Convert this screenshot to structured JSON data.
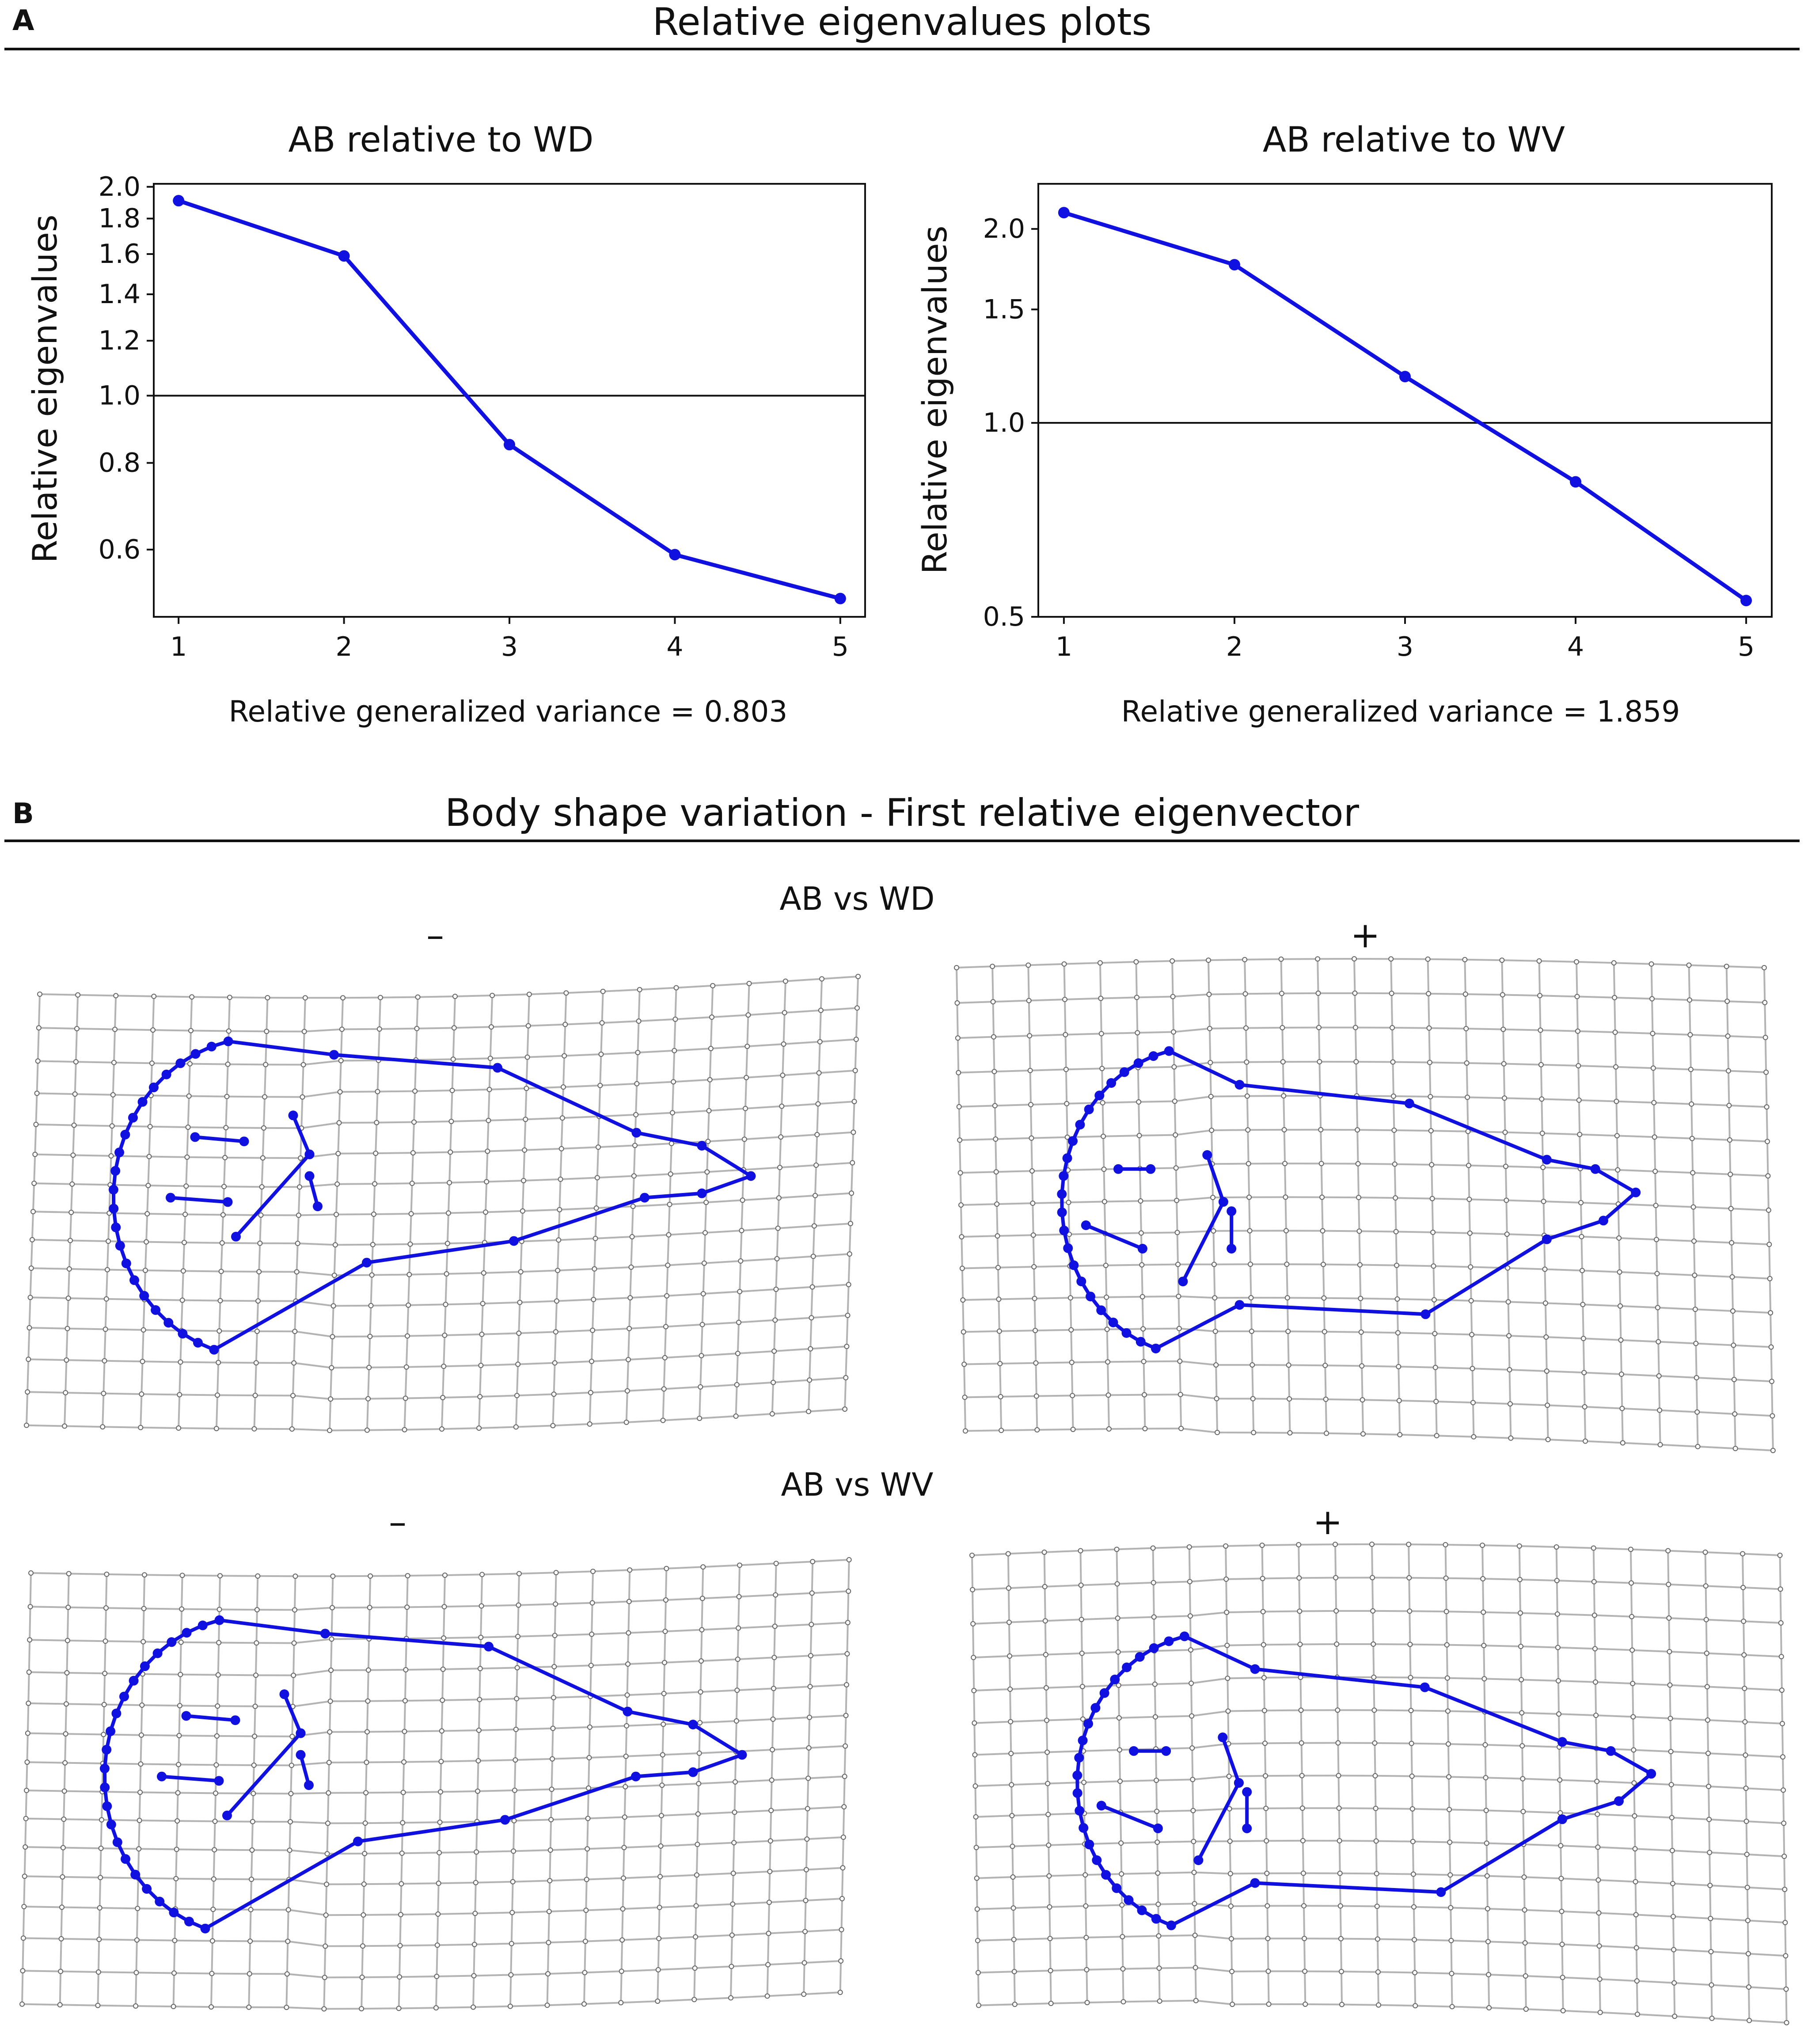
{
  "panel_a": {
    "letter": "A",
    "title": "Relative eigenvalues plots"
  },
  "panel_b": {
    "letter": "B",
    "title": "Body shape variation - First relative eigenvector",
    "comparisons": [
      {
        "label": "AB vs WD",
        "minus": "–",
        "plus": "+"
      },
      {
        "label": "AB vs WV",
        "minus": "–",
        "plus": "+"
      }
    ]
  },
  "colors": {
    "series": "#1010e0",
    "grid": "#b3b3b3",
    "axis": "#111111"
  },
  "chart_data": [
    {
      "type": "line",
      "title": "AB relative to WD",
      "xlabel": "",
      "ylabel": "Relative eigenvalues",
      "x": [
        1,
        2,
        3,
        4,
        5
      ],
      "values": [
        1.91,
        1.59,
        0.85,
        0.59,
        0.51
      ],
      "yscale": "log",
      "ylim": [
        0.48,
        2.02
      ],
      "xlim": [
        0.85,
        5.15
      ],
      "yticks": [
        0.6,
        0.8,
        1.0,
        1.2,
        1.4,
        1.6,
        1.8,
        2.0
      ],
      "ytick_labels": [
        "0.6",
        "0.8",
        "1.0",
        "1.2",
        "1.4",
        "1.6",
        "1.8",
        "2.0"
      ],
      "xticks": [
        1,
        2,
        3,
        4,
        5
      ],
      "reference_line": 1.0,
      "annotation": "Relative generalized variance = 0.803"
    },
    {
      "type": "line",
      "title": "AB relative to WV",
      "xlabel": "",
      "ylabel": "Relative eigenvalues",
      "x": [
        1,
        2,
        3,
        4,
        5
      ],
      "values": [
        2.12,
        1.76,
        1.18,
        0.81,
        0.53
      ],
      "yscale": "log",
      "ylim": [
        0.5,
        2.35
      ],
      "xlim": [
        0.85,
        5.15
      ],
      "yticks": [
        0.5,
        1.0,
        1.5,
        2.0
      ],
      "ytick_labels": [
        "0.5",
        "1.0",
        "1.5",
        "2.0"
      ],
      "xticks": [
        1,
        2,
        3,
        4,
        5
      ],
      "reference_line": 1.0,
      "annotation": "Relative generalized variance = 1.859"
    }
  ]
}
